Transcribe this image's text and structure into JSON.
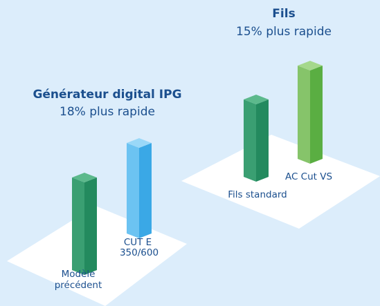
{
  "groups": [
    {
      "title": "Générateur digital IPG",
      "subtitle": "18% plus rapide",
      "items": [
        {
          "label": [
            "Modèle",
            "précédent"
          ]
        },
        {
          "label": [
            "CUT E",
            "350/600"
          ]
        }
      ]
    },
    {
      "title": "Fils",
      "subtitle": "15% plus rapide",
      "items": [
        {
          "label": [
            "Fils standard"
          ]
        },
        {
          "label": [
            "AC Cut VS"
          ]
        }
      ]
    }
  ]
}
